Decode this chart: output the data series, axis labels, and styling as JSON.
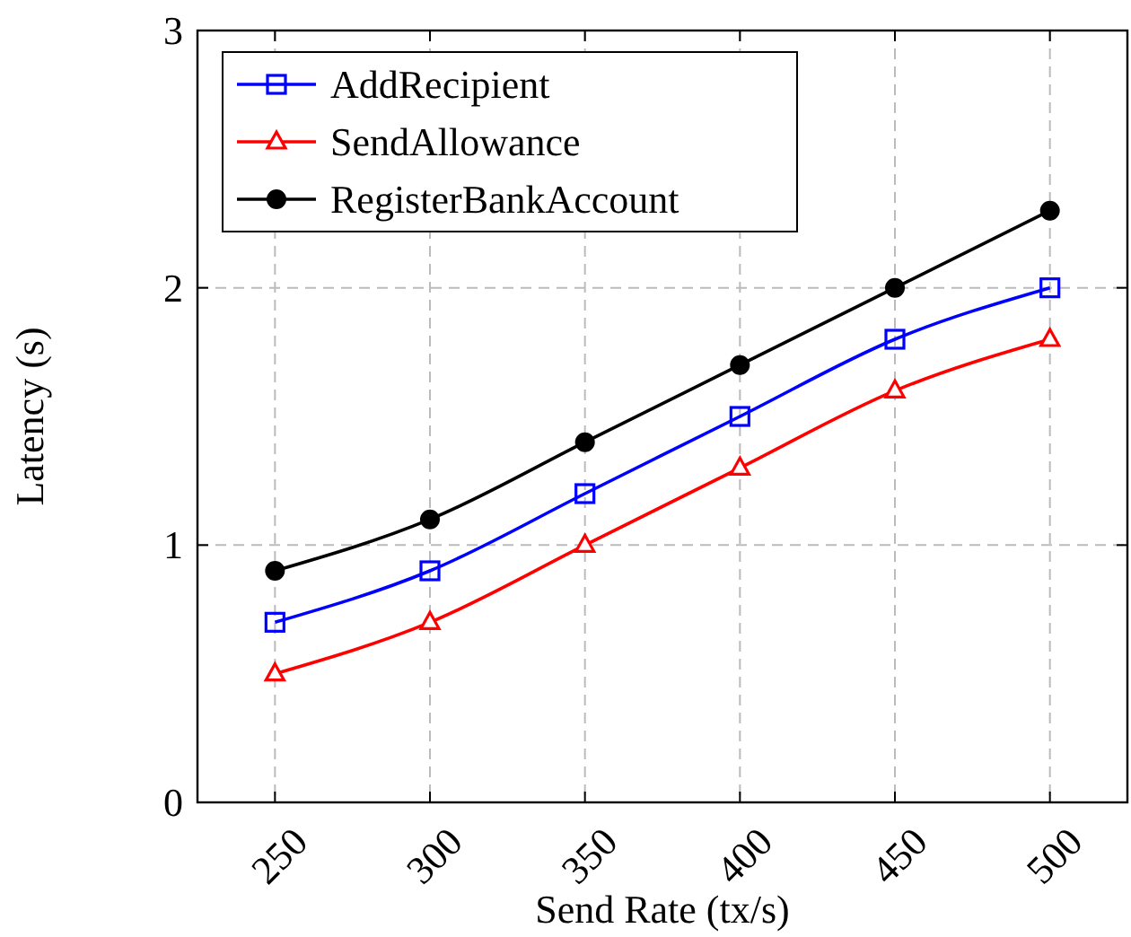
{
  "chart_data": {
    "type": "line",
    "xlabel": "Send Rate (tx/s)",
    "ylabel": "Latency (s)",
    "x": [
      250,
      300,
      350,
      400,
      450,
      500
    ],
    "series": [
      {
        "name": "AddRecipient",
        "color": "#0000ff",
        "marker": "square",
        "values": [
          0.7,
          0.9,
          1.2,
          1.5,
          1.8,
          2.0
        ]
      },
      {
        "name": "SendAllowance",
        "color": "#ff0000",
        "marker": "triangle",
        "values": [
          0.5,
          0.7,
          1.0,
          1.3,
          1.6,
          1.8
        ]
      },
      {
        "name": "RegisterBankAccount",
        "color": "#000000",
        "marker": "circle",
        "values": [
          0.9,
          1.1,
          1.4,
          1.7,
          2.0,
          2.3
        ]
      }
    ],
    "xlim": [
      225,
      525
    ],
    "xticks": [
      250,
      300,
      350,
      400,
      450,
      500
    ],
    "ylim": [
      0,
      3
    ],
    "yticks": [
      0,
      1,
      2,
      3
    ],
    "grid": true,
    "legend": "top left"
  }
}
